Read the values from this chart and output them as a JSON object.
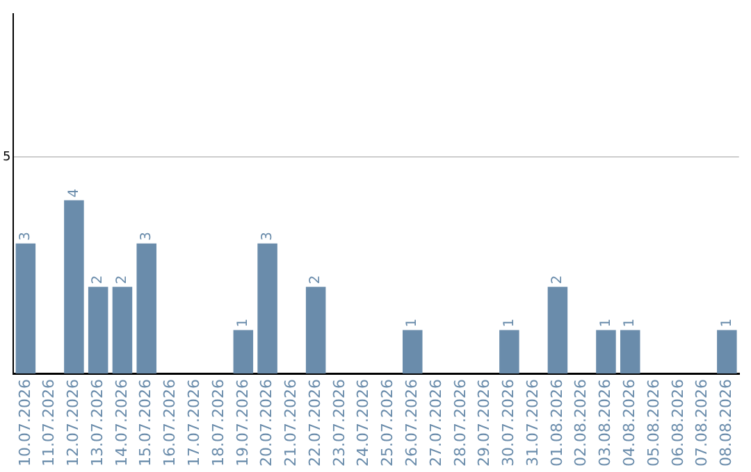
{
  "chart_data": {
    "type": "bar",
    "categories": [
      "10.07.2026",
      "11.07.2026",
      "12.07.2026",
      "13.07.2026",
      "14.07.2026",
      "15.07.2026",
      "16.07.2026",
      "17.07.2026",
      "18.07.2026",
      "19.07.2026",
      "20.07.2026",
      "21.07.2026",
      "22.07.2026",
      "23.07.2026",
      "24.07.2026",
      "25.07.2026",
      "26.07.2026",
      "27.07.2026",
      "28.07.2026",
      "29.07.2026",
      "30.07.2026",
      "31.07.2026",
      "01.08.2026",
      "02.08.2026",
      "03.08.2026",
      "04.08.2026",
      "05.08.2026",
      "06.08.2026",
      "07.08.2026",
      "08.08.2026"
    ],
    "values": [
      3,
      0,
      4,
      2,
      2,
      3,
      0,
      0,
      0,
      1,
      3,
      0,
      2,
      0,
      0,
      0,
      1,
      0,
      0,
      0,
      1,
      0,
      2,
      0,
      1,
      1,
      0,
      0,
      0,
      1
    ],
    "value_labels": [
      "3",
      null,
      "4",
      "2",
      "2",
      "3",
      null,
      null,
      null,
      "1",
      "3",
      null,
      "2",
      null,
      null,
      null,
      "1",
      null,
      null,
      null,
      "1",
      null,
      "2",
      null,
      "1",
      "1",
      null,
      null,
      null,
      "1"
    ],
    "color": "#6a8cab",
    "ylim": [
      0,
      8.3
    ],
    "yticks": [
      5
    ],
    "grid": "y",
    "legend": false
  }
}
